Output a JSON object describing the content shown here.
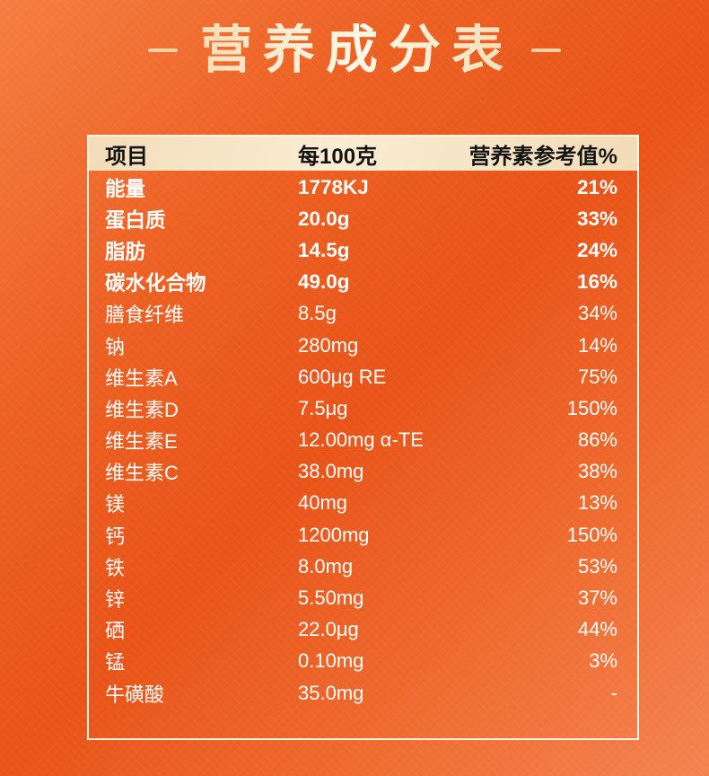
{
  "title": {
    "text": "营养成分表"
  },
  "table": {
    "headers": [
      "项目",
      "每100克",
      "营养素参考值%"
    ],
    "rows": [
      {
        "name": "能量",
        "per100g": "1778KJ",
        "nrv": "21%",
        "bold": true
      },
      {
        "name": "蛋白质",
        "per100g": "20.0g",
        "nrv": "33%",
        "bold": true
      },
      {
        "name": "脂肪",
        "per100g": "14.5g",
        "nrv": "24%",
        "bold": true
      },
      {
        "name": "碳水化合物",
        "per100g": "49.0g",
        "nrv": "16%",
        "bold": true
      },
      {
        "name": "膳食纤维",
        "per100g": "8.5g",
        "nrv": "34%",
        "bold": false
      },
      {
        "name": "钠",
        "per100g": "280mg",
        "nrv": "14%",
        "bold": false
      },
      {
        "name": "维生素A",
        "per100g": "600μg RE",
        "nrv": "75%",
        "bold": false
      },
      {
        "name": "维生素D",
        "per100g": "7.5μg",
        "nrv": "150%",
        "bold": false
      },
      {
        "name": "维生素E",
        "per100g": "12.00mg α-TE",
        "nrv": "86%",
        "bold": false
      },
      {
        "name": "维生素C",
        "per100g": "38.0mg",
        "nrv": "38%",
        "bold": false
      },
      {
        "name": "镁",
        "per100g": "40mg",
        "nrv": "13%",
        "bold": false
      },
      {
        "name": "钙",
        "per100g": "1200mg",
        "nrv": "150%",
        "bold": false
      },
      {
        "name": "铁",
        "per100g": "8.0mg",
        "nrv": "53%",
        "bold": false
      },
      {
        "name": "锌",
        "per100g": "5.50mg",
        "nrv": "37%",
        "bold": false
      },
      {
        "name": "硒",
        "per100g": "22.0μg",
        "nrv": "44%",
        "bold": false
      },
      {
        "name": "锰",
        "per100g": "0.10mg",
        "nrv": "3%",
        "bold": false
      },
      {
        "name": "牛磺酸",
        "per100g": "35.0mg",
        "nrv": "-",
        "bold": false
      }
    ]
  },
  "colors": {
    "background_top_left": "#f57d41",
    "background_mid": "#e95317",
    "background_bottom_right": "#f48350",
    "header_background": "#f5e2c0",
    "table_border": "#faf3e3",
    "title_text": "#f6e4bd",
    "body_text": "#ffffff",
    "header_text": "#141414"
  }
}
